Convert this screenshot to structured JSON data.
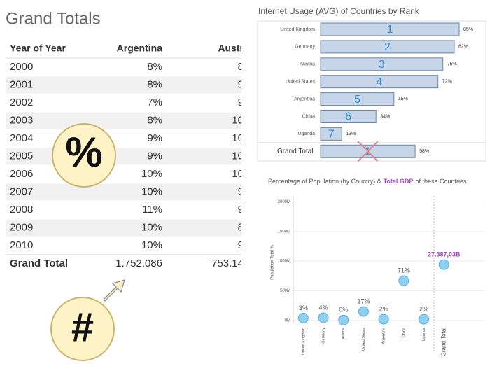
{
  "table": {
    "title": "Grand Totals",
    "columns": [
      "Year of Year",
      "Argentina",
      "Austr"
    ],
    "rows": [
      [
        "2000",
        "8%",
        "8"
      ],
      [
        "2001",
        "8%",
        "9"
      ],
      [
        "2002",
        "7%",
        "9"
      ],
      [
        "2003",
        "8%",
        "10"
      ],
      [
        "2004",
        "9%",
        "10"
      ],
      [
        "2005",
        "9%",
        "10"
      ],
      [
        "2006",
        "10%",
        "10"
      ],
      [
        "2007",
        "10%",
        "9"
      ],
      [
        "2008",
        "11%",
        "9"
      ],
      [
        "2009",
        "10%",
        "8"
      ],
      [
        "2010",
        "10%",
        "9"
      ]
    ],
    "total": [
      "Grand Total",
      "1.752.086",
      "753.14"
    ]
  },
  "annotations": {
    "percent": "%",
    "hash": "#"
  },
  "chart_data": [
    {
      "type": "bar",
      "title": "Internet Usage (AVG) of Countries by Rank",
      "categories": [
        "United Kingdom",
        "Germany",
        "Austria",
        "United States",
        "Argentina",
        "China",
        "Uganda",
        "Grand Total"
      ],
      "values": [
        85,
        82,
        75,
        72,
        45,
        34,
        13,
        58
      ],
      "value_labels": [
        "85%",
        "82%",
        "75%",
        "72%",
        "45%",
        "34%",
        "13%",
        "58%"
      ],
      "ranks": [
        "1",
        "2",
        "3",
        "4",
        "5",
        "6",
        "7",
        "1"
      ],
      "color": "#c6d5e8",
      "rank_color": "#2e8bd6"
    },
    {
      "type": "scatter",
      "title": "Percentage of Population (by Country) &",
      "title_highlight": "Total GDP",
      "title_end": "of these Countries",
      "y_label": "Population Total %",
      "categories": [
        "United Kingdom",
        "Germany",
        "Austria",
        "United States",
        "Argentina",
        "China",
        "Uganda",
        "Grand Total"
      ],
      "values": [
        40000000,
        45000000,
        5000000,
        150000000,
        20000000,
        670000000,
        20000000,
        940000000
      ],
      "point_labels": [
        "3%",
        "4%",
        "0%",
        "17%",
        "2%",
        "71%",
        "2%",
        "27.387,03B"
      ],
      "color": "#8fd0f0",
      "highlight_color": "#a83fc8",
      "ylim": [
        -50000000,
        2100000000
      ],
      "yticks": [
        {
          "value": 0,
          "label": "0M"
        },
        {
          "value": 500000000,
          "label": "500M"
        },
        {
          "value": 1000000000,
          "label": "1000M"
        },
        {
          "value": 1500000000,
          "label": "1500M"
        },
        {
          "value": 2000000000,
          "label": "2000M"
        }
      ],
      "grid": true
    }
  ]
}
